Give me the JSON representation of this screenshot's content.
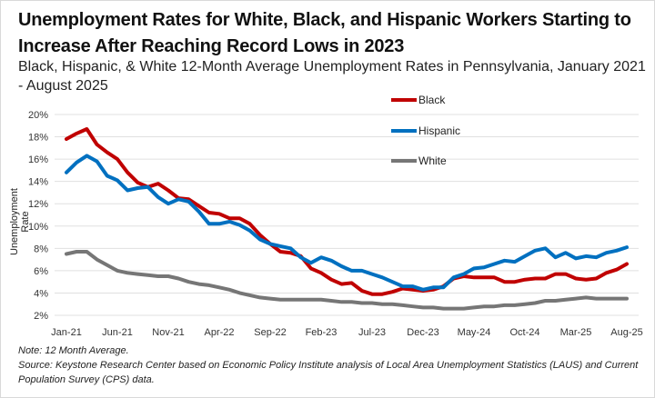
{
  "chart_data": {
    "type": "line",
    "title": "Unemployment Rates for White, Black, and Hispanic Workers Starting to Increase After Reaching Record Lows in 2023",
    "subtitle": "Black, Hispanic, & White 12-Month Average Unemployment  Rates in Pennsylvania, January 2021 - August 2025",
    "xlabel": "",
    "ylabel": "Unemployment Rate",
    "ylim": [
      2,
      20
    ],
    "yticks": [
      "2%",
      "4%",
      "6%",
      "8%",
      "10%",
      "12%",
      "14%",
      "16%",
      "18%",
      "20%"
    ],
    "ytick_values": [
      2,
      4,
      6,
      8,
      10,
      12,
      14,
      16,
      18,
      20
    ],
    "xtick_labels": [
      "Jan-21",
      "Jun-21",
      "Nov-21",
      "Apr-22",
      "Sep-22",
      "Feb-23",
      "Jul-23",
      "Dec-23",
      "May-24",
      "Oct-24",
      "Mar-25",
      "Aug-25"
    ],
    "xtick_every": 5,
    "grid": true,
    "legend_position": "top-center",
    "x": [
      "Jan-21",
      "Feb-21",
      "Mar-21",
      "Apr-21",
      "May-21",
      "Jun-21",
      "Jul-21",
      "Aug-21",
      "Sep-21",
      "Oct-21",
      "Nov-21",
      "Dec-21",
      "Jan-22",
      "Feb-22",
      "Mar-22",
      "Apr-22",
      "May-22",
      "Jun-22",
      "Jul-22",
      "Aug-22",
      "Sep-22",
      "Oct-22",
      "Nov-22",
      "Dec-22",
      "Jan-23",
      "Feb-23",
      "Mar-23",
      "Apr-23",
      "May-23",
      "Jun-23",
      "Jul-23",
      "Aug-23",
      "Sep-23",
      "Oct-23",
      "Nov-23",
      "Dec-23",
      "Jan-24",
      "Feb-24",
      "Mar-24",
      "Apr-24",
      "May-24",
      "Jun-24",
      "Jul-24",
      "Aug-24",
      "Sep-24",
      "Oct-24",
      "Nov-24",
      "Dec-24",
      "Jan-25",
      "Feb-25",
      "Mar-25",
      "Apr-25",
      "May-25",
      "Jun-25",
      "Jul-25",
      "Aug-25"
    ],
    "series": [
      {
        "name": "Black",
        "color": "#c00000",
        "values": [
          17.8,
          18.3,
          18.7,
          17.3,
          16.6,
          16.0,
          14.8,
          13.9,
          13.5,
          13.8,
          13.2,
          12.5,
          12.4,
          11.8,
          11.2,
          11.1,
          10.7,
          10.7,
          10.2,
          9.2,
          8.4,
          7.7,
          7.6,
          7.3,
          6.2,
          5.8,
          5.2,
          4.8,
          4.9,
          4.2,
          3.9,
          3.9,
          4.1,
          4.4,
          4.3,
          4.2,
          4.3,
          4.6,
          5.3,
          5.5,
          5.4,
          5.4,
          5.4,
          5.0,
          5.0,
          5.2,
          5.3,
          5.3,
          5.7,
          5.7,
          5.3,
          5.2,
          5.3,
          5.8,
          6.1,
          6.6
        ]
      },
      {
        "name": "Hispanic",
        "color": "#0070c0",
        "values": [
          14.8,
          15.7,
          16.3,
          15.8,
          14.5,
          14.1,
          13.2,
          13.4,
          13.5,
          12.6,
          12.0,
          12.4,
          12.2,
          11.3,
          10.2,
          10.2,
          10.4,
          10.1,
          9.6,
          8.8,
          8.4,
          8.2,
          8.0,
          7.2,
          6.7,
          7.2,
          6.9,
          6.4,
          6.0,
          6.0,
          5.7,
          5.4,
          5.0,
          4.6,
          4.6,
          4.3,
          4.5,
          4.5,
          5.4,
          5.7,
          6.2,
          6.3,
          6.6,
          6.9,
          6.8,
          7.3,
          7.8,
          8.0,
          7.2,
          7.6,
          7.1,
          7.3,
          7.2,
          7.6,
          7.8,
          8.1
        ]
      },
      {
        "name": "White",
        "color": "#767676",
        "values": [
          7.5,
          7.7,
          7.7,
          7.0,
          6.5,
          6.0,
          5.8,
          5.7,
          5.6,
          5.5,
          5.5,
          5.3,
          5.0,
          4.8,
          4.7,
          4.5,
          4.3,
          4.0,
          3.8,
          3.6,
          3.5,
          3.4,
          3.4,
          3.4,
          3.4,
          3.4,
          3.3,
          3.2,
          3.2,
          3.1,
          3.1,
          3.0,
          3.0,
          2.9,
          2.8,
          2.7,
          2.7,
          2.6,
          2.6,
          2.6,
          2.7,
          2.8,
          2.8,
          2.9,
          2.9,
          3.0,
          3.1,
          3.3,
          3.3,
          3.4,
          3.5,
          3.6,
          3.5,
          3.5,
          3.5,
          3.5
        ]
      }
    ]
  },
  "footer": {
    "note": "Note: 12 Month Average.",
    "source": "Source: Keystone Research Center based on Economic Policy Institute analysis of Local Area Unemployment Statistics (LAUS) and Current Population Survey (CPS) data."
  }
}
